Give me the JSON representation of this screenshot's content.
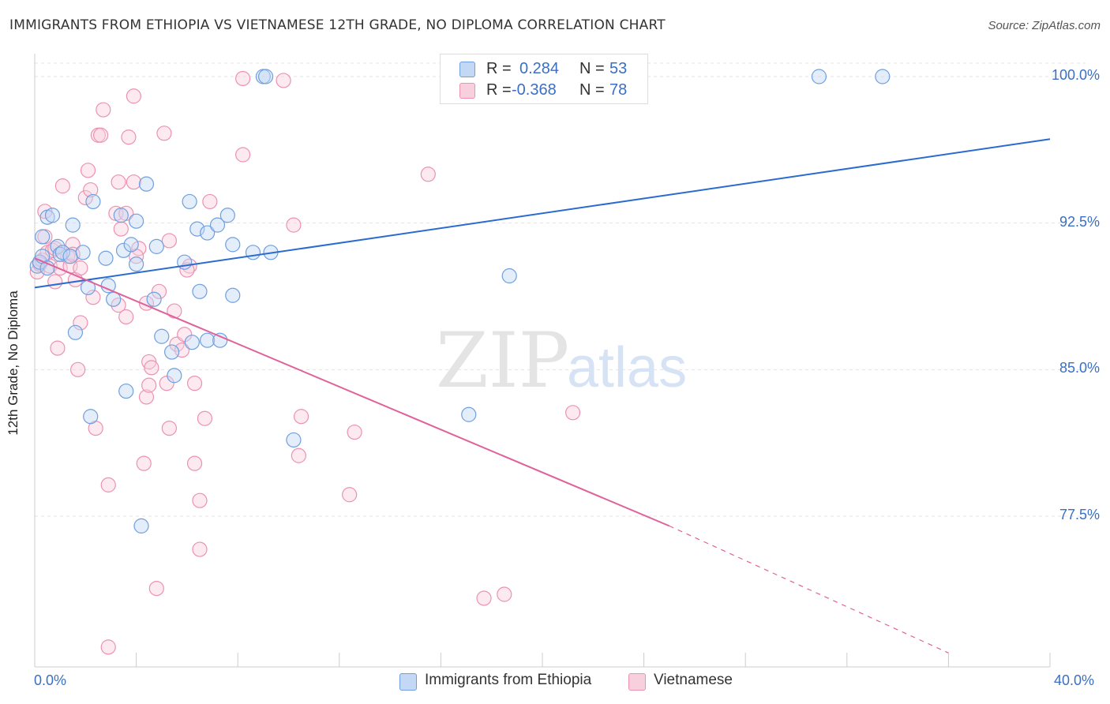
{
  "title": "IMMIGRANTS FROM ETHIOPIA VS VIETNAMESE 12TH GRADE, NO DIPLOMA CORRELATION CHART",
  "source": "Source: ZipAtlas.com",
  "watermark": {
    "zip": "ZIP",
    "atlas": "atlas"
  },
  "legend_top": {
    "rows": [
      {
        "r_label": "R =",
        "r_value": "0.284",
        "n_label": "N =",
        "n_value": "53",
        "color": "#a9c8f0"
      },
      {
        "r_label": "R =",
        "r_value": "-0.368",
        "n_label": "N =",
        "n_value": "78",
        "color": "#f5b8cb"
      }
    ]
  },
  "legend_bottom": {
    "items": [
      {
        "label": "Immigrants from Ethiopia",
        "color": "#a9c8f0"
      },
      {
        "label": "Vietnamese",
        "color": "#f5b8cb"
      }
    ]
  },
  "chart_data": {
    "type": "scatter",
    "title": "IMMIGRANTS FROM ETHIOPIA VS VIETNAMESE 12TH GRADE, NO DIPLOMA CORRELATION CHART",
    "xlabel": "",
    "ylabel": "12th Grade, No Diploma",
    "xlim": [
      0,
      40
    ],
    "ylim": [
      70.5,
      101
    ],
    "x_ticks_labeled": [
      {
        "value": 0,
        "label": "0.0%"
      },
      {
        "value": 40,
        "label": "40.0%"
      }
    ],
    "x_minor_ticks": [
      0,
      4,
      8,
      12,
      16,
      20,
      24,
      28,
      32,
      36,
      40
    ],
    "y_ticks": [
      {
        "value": 100,
        "label": "100.0%"
      },
      {
        "value": 92.5,
        "label": "92.5%"
      },
      {
        "value": 85,
        "label": "85.0%"
      },
      {
        "value": 77.5,
        "label": "77.5%"
      }
    ],
    "grid": true,
    "colors": {
      "ethiopia_stroke": "#6f9fdf",
      "ethiopia_fill": "#c3d8f4",
      "ethiopia_line": "#2a6bcf",
      "viet_stroke": "#ec92b1",
      "viet_fill": "#f8d0dd",
      "viet_line": "#e0629a"
    },
    "series": [
      {
        "name": "Immigrants from Ethiopia",
        "points": [
          [
            0.1,
            90.3
          ],
          [
            0.2,
            90.5
          ],
          [
            0.3,
            90.8
          ],
          [
            0.3,
            91.8
          ],
          [
            0.5,
            92.8
          ],
          [
            0.5,
            90.2
          ],
          [
            0.7,
            92.9
          ],
          [
            0.9,
            91.3
          ],
          [
            1.0,
            90.9
          ],
          [
            1.1,
            91.0
          ],
          [
            1.4,
            90.8
          ],
          [
            1.5,
            92.4
          ],
          [
            1.9,
            91.0
          ],
          [
            1.6,
            86.9
          ],
          [
            2.3,
            93.6
          ],
          [
            2.1,
            89.2
          ],
          [
            2.2,
            82.6
          ],
          [
            2.8,
            90.7
          ],
          [
            2.9,
            89.3
          ],
          [
            3.1,
            88.6
          ],
          [
            3.4,
            92.9
          ],
          [
            3.5,
            91.1
          ],
          [
            3.6,
            83.9
          ],
          [
            3.8,
            91.4
          ],
          [
            4.0,
            92.6
          ],
          [
            4.0,
            90.4
          ],
          [
            4.4,
            94.5
          ],
          [
            4.7,
            88.6
          ],
          [
            4.8,
            91.3
          ],
          [
            5.0,
            86.7
          ],
          [
            5.4,
            85.9
          ],
          [
            5.5,
            84.7
          ],
          [
            5.9,
            90.5
          ],
          [
            6.1,
            93.6
          ],
          [
            6.2,
            86.4
          ],
          [
            6.4,
            92.2
          ],
          [
            6.5,
            89.0
          ],
          [
            6.8,
            86.5
          ],
          [
            6.8,
            92.0
          ],
          [
            7.2,
            92.4
          ],
          [
            7.3,
            86.5
          ],
          [
            7.6,
            92.9
          ],
          [
            7.8,
            91.4
          ],
          [
            7.8,
            88.8
          ],
          [
            8.6,
            91.0
          ],
          [
            9.0,
            100.0
          ],
          [
            9.1,
            100.0
          ],
          [
            9.3,
            91.0
          ],
          [
            10.2,
            81.4
          ],
          [
            17.1,
            82.7
          ],
          [
            18.7,
            89.8
          ],
          [
            30.9,
            100.0
          ],
          [
            33.4,
            100.0
          ],
          [
            4.2,
            77.0
          ]
        ]
      },
      {
        "name": "Vietnamese",
        "points": [
          [
            0.1,
            90.0
          ],
          [
            0.2,
            90.4
          ],
          [
            0.3,
            90.6
          ],
          [
            0.4,
            91.8
          ],
          [
            0.4,
            93.1
          ],
          [
            0.5,
            91.0
          ],
          [
            0.6,
            90.3
          ],
          [
            0.7,
            91.1
          ],
          [
            0.8,
            89.5
          ],
          [
            0.9,
            86.1
          ],
          [
            1.0,
            90.2
          ],
          [
            1.1,
            94.4
          ],
          [
            1.3,
            90.8
          ],
          [
            1.4,
            90.3
          ],
          [
            1.5,
            91.4
          ],
          [
            1.6,
            89.6
          ],
          [
            1.7,
            85.0
          ],
          [
            1.8,
            90.2
          ],
          [
            1.8,
            87.4
          ],
          [
            2.0,
            93.8
          ],
          [
            2.1,
            95.2
          ],
          [
            2.2,
            94.2
          ],
          [
            2.3,
            88.7
          ],
          [
            2.4,
            82.0
          ],
          [
            2.5,
            97.0
          ],
          [
            2.6,
            97.0
          ],
          [
            2.7,
            98.3
          ],
          [
            2.9,
            79.1
          ],
          [
            2.9,
            70.8
          ],
          [
            3.2,
            93.0
          ],
          [
            3.3,
            94.6
          ],
          [
            3.3,
            88.3
          ],
          [
            3.4,
            92.2
          ],
          [
            3.6,
            93.0
          ],
          [
            3.6,
            87.7
          ],
          [
            3.7,
            96.9
          ],
          [
            3.9,
            94.6
          ],
          [
            3.9,
            99.0
          ],
          [
            4.1,
            91.2
          ],
          [
            4.4,
            88.4
          ],
          [
            4.3,
            80.2
          ],
          [
            4.4,
            83.6
          ],
          [
            4.5,
            84.2
          ],
          [
            4.5,
            85.4
          ],
          [
            4.6,
            85.1
          ],
          [
            4.8,
            73.8
          ],
          [
            4.9,
            89.0
          ],
          [
            5.1,
            97.1
          ],
          [
            5.2,
            84.3
          ],
          [
            5.3,
            91.6
          ],
          [
            5.3,
            82.0
          ],
          [
            5.5,
            88.0
          ],
          [
            5.6,
            86.3
          ],
          [
            5.8,
            86.0
          ],
          [
            5.9,
            86.8
          ],
          [
            6.1,
            90.3
          ],
          [
            6.3,
            84.3
          ],
          [
            6.3,
            80.2
          ],
          [
            6.5,
            78.3
          ],
          [
            6.5,
            75.8
          ],
          [
            6.7,
            82.5
          ],
          [
            6.9,
            93.6
          ],
          [
            8.2,
            96.0
          ],
          [
            8.2,
            99.9
          ],
          [
            9.8,
            99.8
          ],
          [
            10.2,
            92.4
          ],
          [
            10.4,
            80.6
          ],
          [
            10.5,
            82.6
          ],
          [
            12.4,
            78.6
          ],
          [
            12.6,
            81.8
          ],
          [
            15.5,
            95.0
          ],
          [
            17.7,
            73.3
          ],
          [
            18.5,
            73.5
          ],
          [
            21.2,
            82.8
          ],
          [
            1.5,
            90.9
          ],
          [
            0.8,
            91.2
          ],
          [
            4.0,
            90.8
          ],
          [
            6.0,
            90.1
          ]
        ]
      }
    ],
    "trend_lines": [
      {
        "series": "Immigrants from Ethiopia",
        "from": [
          0,
          89.2
        ],
        "to": [
          40,
          96.8
        ],
        "style": "solid"
      },
      {
        "series": "Vietnamese",
        "from": [
          0,
          90.7
        ],
        "to": [
          25,
          77.0
        ],
        "style": "solid"
      },
      {
        "series": "Vietnamese",
        "from": [
          25,
          77.0
        ],
        "to": [
          36,
          70.5
        ],
        "style": "dashed"
      }
    ]
  }
}
